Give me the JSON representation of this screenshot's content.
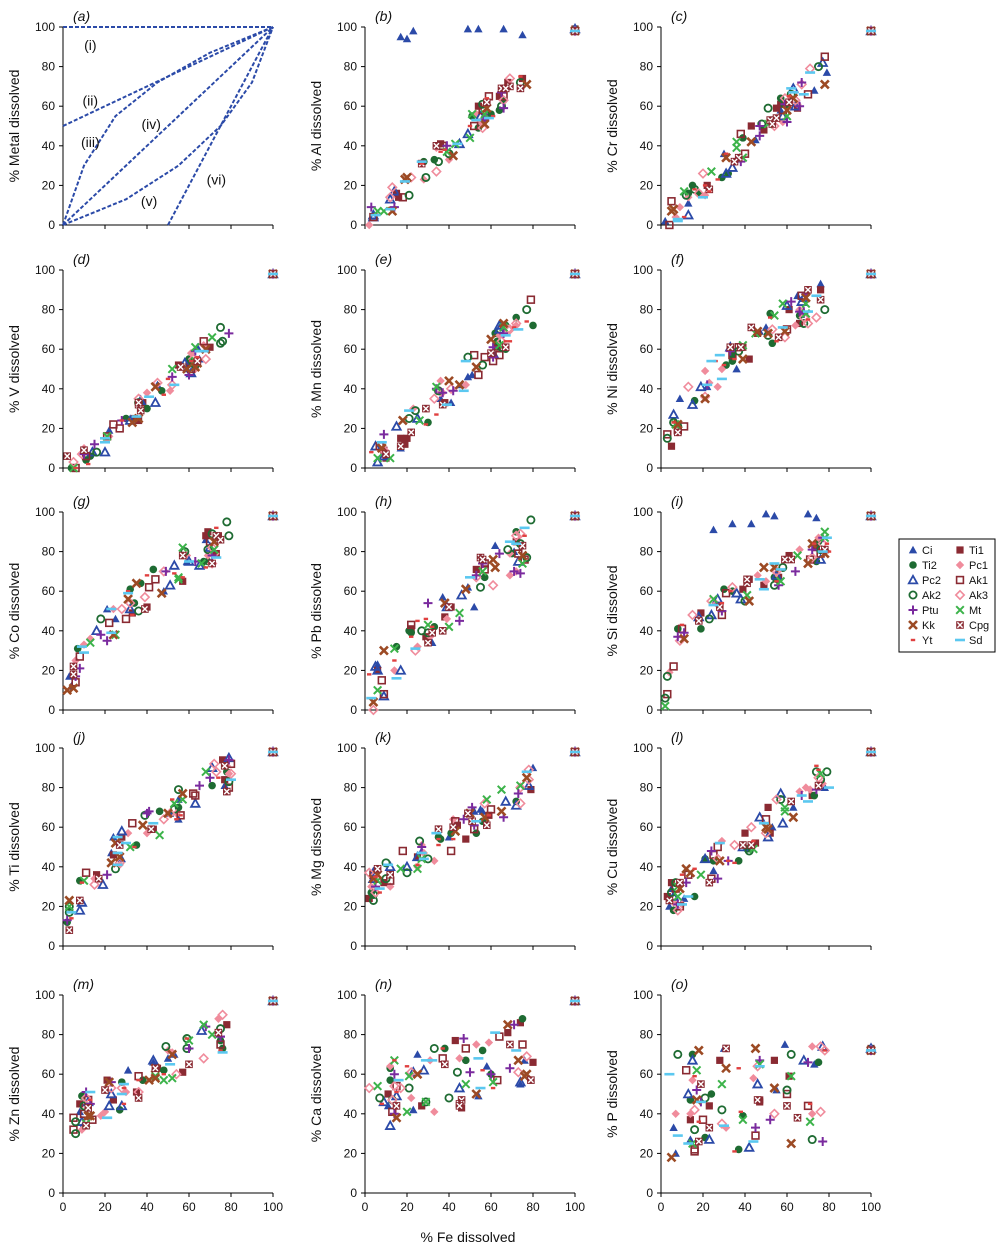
{
  "figure": {
    "x_axis_label": "% Fe dissolved",
    "colors": {
      "Ci": "#2b4aa8",
      "Ti2": "#1e6b32",
      "Pc2": "#2b4aa8",
      "Ak2": "#1e6b32",
      "Ptu": "#7a2a9e",
      "Kk": "#9c4a24",
      "Yt": "#e04040",
      "Ti1": "#8a2a32",
      "Pc1": "#f08c9c",
      "Ak1": "#8a2a32",
      "Ak3": "#f08c9c",
      "Mt": "#3cb34a",
      "Cpg": "#8a2a32",
      "Sd": "#5bc8f0",
      "curve": "#2b4aa8"
    },
    "legend": [
      {
        "name": "Ci",
        "marker": "triangle-filled"
      },
      {
        "name": "Ti1",
        "marker": "square-filled"
      },
      {
        "name": "Ti2",
        "marker": "circle-filled"
      },
      {
        "name": "Pc1",
        "marker": "diamond-filled"
      },
      {
        "name": "Pc2",
        "marker": "triangle-open"
      },
      {
        "name": "Ak1",
        "marker": "square-open"
      },
      {
        "name": "Ak2",
        "marker": "circle-open"
      },
      {
        "name": "Ak3",
        "marker": "diamond-open"
      },
      {
        "name": "Ptu",
        "marker": "plus"
      },
      {
        "name": "Mt",
        "marker": "x"
      },
      {
        "name": "Kk",
        "marker": "x-thick"
      },
      {
        "name": "Cpg",
        "marker": "box-x"
      },
      {
        "name": "Yt",
        "marker": "dash-short"
      },
      {
        "name": "Sd",
        "marker": "dash"
      }
    ]
  },
  "chart_data": [
    {
      "panel": "(a)",
      "type": "line",
      "ylabel": "% Metal dissolved",
      "xlim": [
        0,
        100
      ],
      "ylim": [
        0,
        100
      ],
      "xticks": [],
      "yticks": [
        "0",
        "20",
        "40",
        "60",
        "80",
        "100"
      ],
      "series": [
        {
          "label": "(i)",
          "x": [
            0,
            100
          ],
          "y": [
            100,
            100
          ]
        },
        {
          "label": "(ii)",
          "x": [
            0,
            100
          ],
          "y": [
            50,
            100
          ]
        },
        {
          "label": "(iii)",
          "x": [
            0,
            10,
            25,
            45,
            70,
            100
          ],
          "y": [
            0,
            30,
            55,
            72,
            87,
            100
          ]
        },
        {
          "label": "(iv)",
          "x": [
            0,
            100
          ],
          "y": [
            0,
            100
          ]
        },
        {
          "label": "(v)",
          "x": [
            0,
            30,
            55,
            75,
            90,
            100
          ],
          "y": [
            0,
            13,
            30,
            50,
            72,
            100
          ]
        },
        {
          "label": "(vi)",
          "x": [
            50,
            100
          ],
          "y": [
            0,
            100
          ]
        }
      ],
      "curve_labels": [
        {
          "text": "(i)",
          "x": 13,
          "y": 91
        },
        {
          "text": "(ii)",
          "x": 13,
          "y": 63
        },
        {
          "text": "(iii)",
          "x": 13,
          "y": 42
        },
        {
          "text": "(iv)",
          "x": 42,
          "y": 51
        },
        {
          "text": "(v)",
          "x": 41,
          "y": 12
        },
        {
          "text": "(vi)",
          "x": 73,
          "y": 23
        }
      ]
    },
    {
      "panel": "(b)",
      "type": "scatter",
      "ylabel": "% Al  dissolved",
      "xlim": [
        0,
        100
      ],
      "ylim": [
        0,
        100
      ],
      "xticks": [],
      "yticks": [
        "0",
        "20",
        "40",
        "60",
        "80",
        "100"
      ],
      "preset": "al"
    },
    {
      "panel": "(c)",
      "type": "scatter",
      "ylabel": "% Cr  dissolved",
      "xlim": [
        0,
        100
      ],
      "ylim": [
        0,
        100
      ],
      "xticks": [],
      "yticks": [
        "0",
        "20",
        "40",
        "60",
        "80",
        "100"
      ],
      "preset": "linear"
    },
    {
      "panel": "(d)",
      "type": "scatter",
      "ylabel": "% V  dissolved",
      "xlim": [
        0,
        100
      ],
      "ylim": [
        0,
        100
      ],
      "xticks": [],
      "yticks": [
        "0",
        "20",
        "40",
        "60",
        "80",
        "100"
      ],
      "preset": "v"
    },
    {
      "panel": "(e)",
      "type": "scatter",
      "ylabel": "% Mn  dissolved",
      "xlim": [
        0,
        100
      ],
      "ylim": [
        0,
        100
      ],
      "xticks": [],
      "yticks": [
        "0",
        "20",
        "40",
        "60",
        "80",
        "100"
      ],
      "preset": "linear"
    },
    {
      "panel": "(f)",
      "type": "scatter",
      "ylabel": "% Ni  dissolved",
      "xlim": [
        0,
        100
      ],
      "ylim": [
        0,
        100
      ],
      "xticks": [],
      "yticks": [
        "0",
        "20",
        "40",
        "60",
        "80",
        "100"
      ],
      "preset": "concave"
    },
    {
      "panel": "(g)",
      "type": "scatter",
      "ylabel": "% Co  dissolved",
      "xlim": [
        0,
        100
      ],
      "ylim": [
        0,
        100
      ],
      "xticks": [],
      "yticks": [
        "0",
        "20",
        "40",
        "60",
        "80",
        "100"
      ],
      "preset": "concave"
    },
    {
      "panel": "(h)",
      "type": "scatter",
      "ylabel": "% Pb  dissolved",
      "xlim": [
        0,
        100
      ],
      "ylim": [
        0,
        100
      ],
      "xticks": [],
      "yticks": [
        "0",
        "20",
        "40",
        "60",
        "80",
        "100"
      ],
      "preset": "scatter"
    },
    {
      "panel": "(i)",
      "type": "scatter",
      "ylabel": "% Si  dissolved",
      "xlim": [
        0,
        100
      ],
      "ylim": [
        0,
        100
      ],
      "xticks": [],
      "yticks": [
        "0",
        "20",
        "40",
        "60",
        "80",
        "100"
      ],
      "preset": "si"
    },
    {
      "panel": "(j)",
      "type": "scatter",
      "ylabel": "% Ti  dissolved",
      "xlim": [
        0,
        100
      ],
      "ylim": [
        0,
        100
      ],
      "xticks": [],
      "yticks": [
        "0",
        "20",
        "40",
        "60",
        "80",
        "100"
      ],
      "preset": "concave"
    },
    {
      "panel": "(k)",
      "type": "scatter",
      "ylabel": "% Mg  dissolved",
      "xlim": [
        0,
        100
      ],
      "ylim": [
        0,
        100
      ],
      "xticks": [],
      "yticks": [
        "0",
        "20",
        "40",
        "60",
        "80",
        "100"
      ],
      "preset": "mg"
    },
    {
      "panel": "(l)",
      "type": "scatter",
      "ylabel": "% Cu  dissolved",
      "xlim": [
        0,
        100
      ],
      "ylim": [
        0,
        100
      ],
      "xticks": [],
      "yticks": [
        "0",
        "20",
        "40",
        "60",
        "80",
        "100"
      ],
      "preset": "cu"
    },
    {
      "panel": "(m)",
      "type": "scatter",
      "ylabel": "% Zn  dissolved",
      "xlim": [
        0,
        100
      ],
      "ylim": [
        0,
        100
      ],
      "xticks": [
        "0",
        "20",
        "40",
        "60",
        "80",
        "100"
      ],
      "yticks": [
        "0",
        "20",
        "40",
        "60",
        "80",
        "100"
      ],
      "preset": "zn"
    },
    {
      "panel": "(n)",
      "type": "scatter",
      "ylabel": "% Ca  dissolved",
      "xlim": [
        0,
        100
      ],
      "ylim": [
        0,
        100
      ],
      "xticks": [
        "0",
        "20",
        "40",
        "60",
        "80",
        "100"
      ],
      "yticks": [
        "0",
        "20",
        "40",
        "60",
        "80",
        "100"
      ],
      "preset": "ca"
    },
    {
      "panel": "(o)",
      "type": "scatter",
      "ylabel": "% P  dissolved",
      "xlim": [
        0,
        100
      ],
      "ylim": [
        0,
        100
      ],
      "xticks": [
        "0",
        "20",
        "40",
        "60",
        "80",
        "100"
      ],
      "yticks": [
        "0",
        "20",
        "40",
        "60",
        "80",
        "100"
      ],
      "preset": "p"
    }
  ]
}
